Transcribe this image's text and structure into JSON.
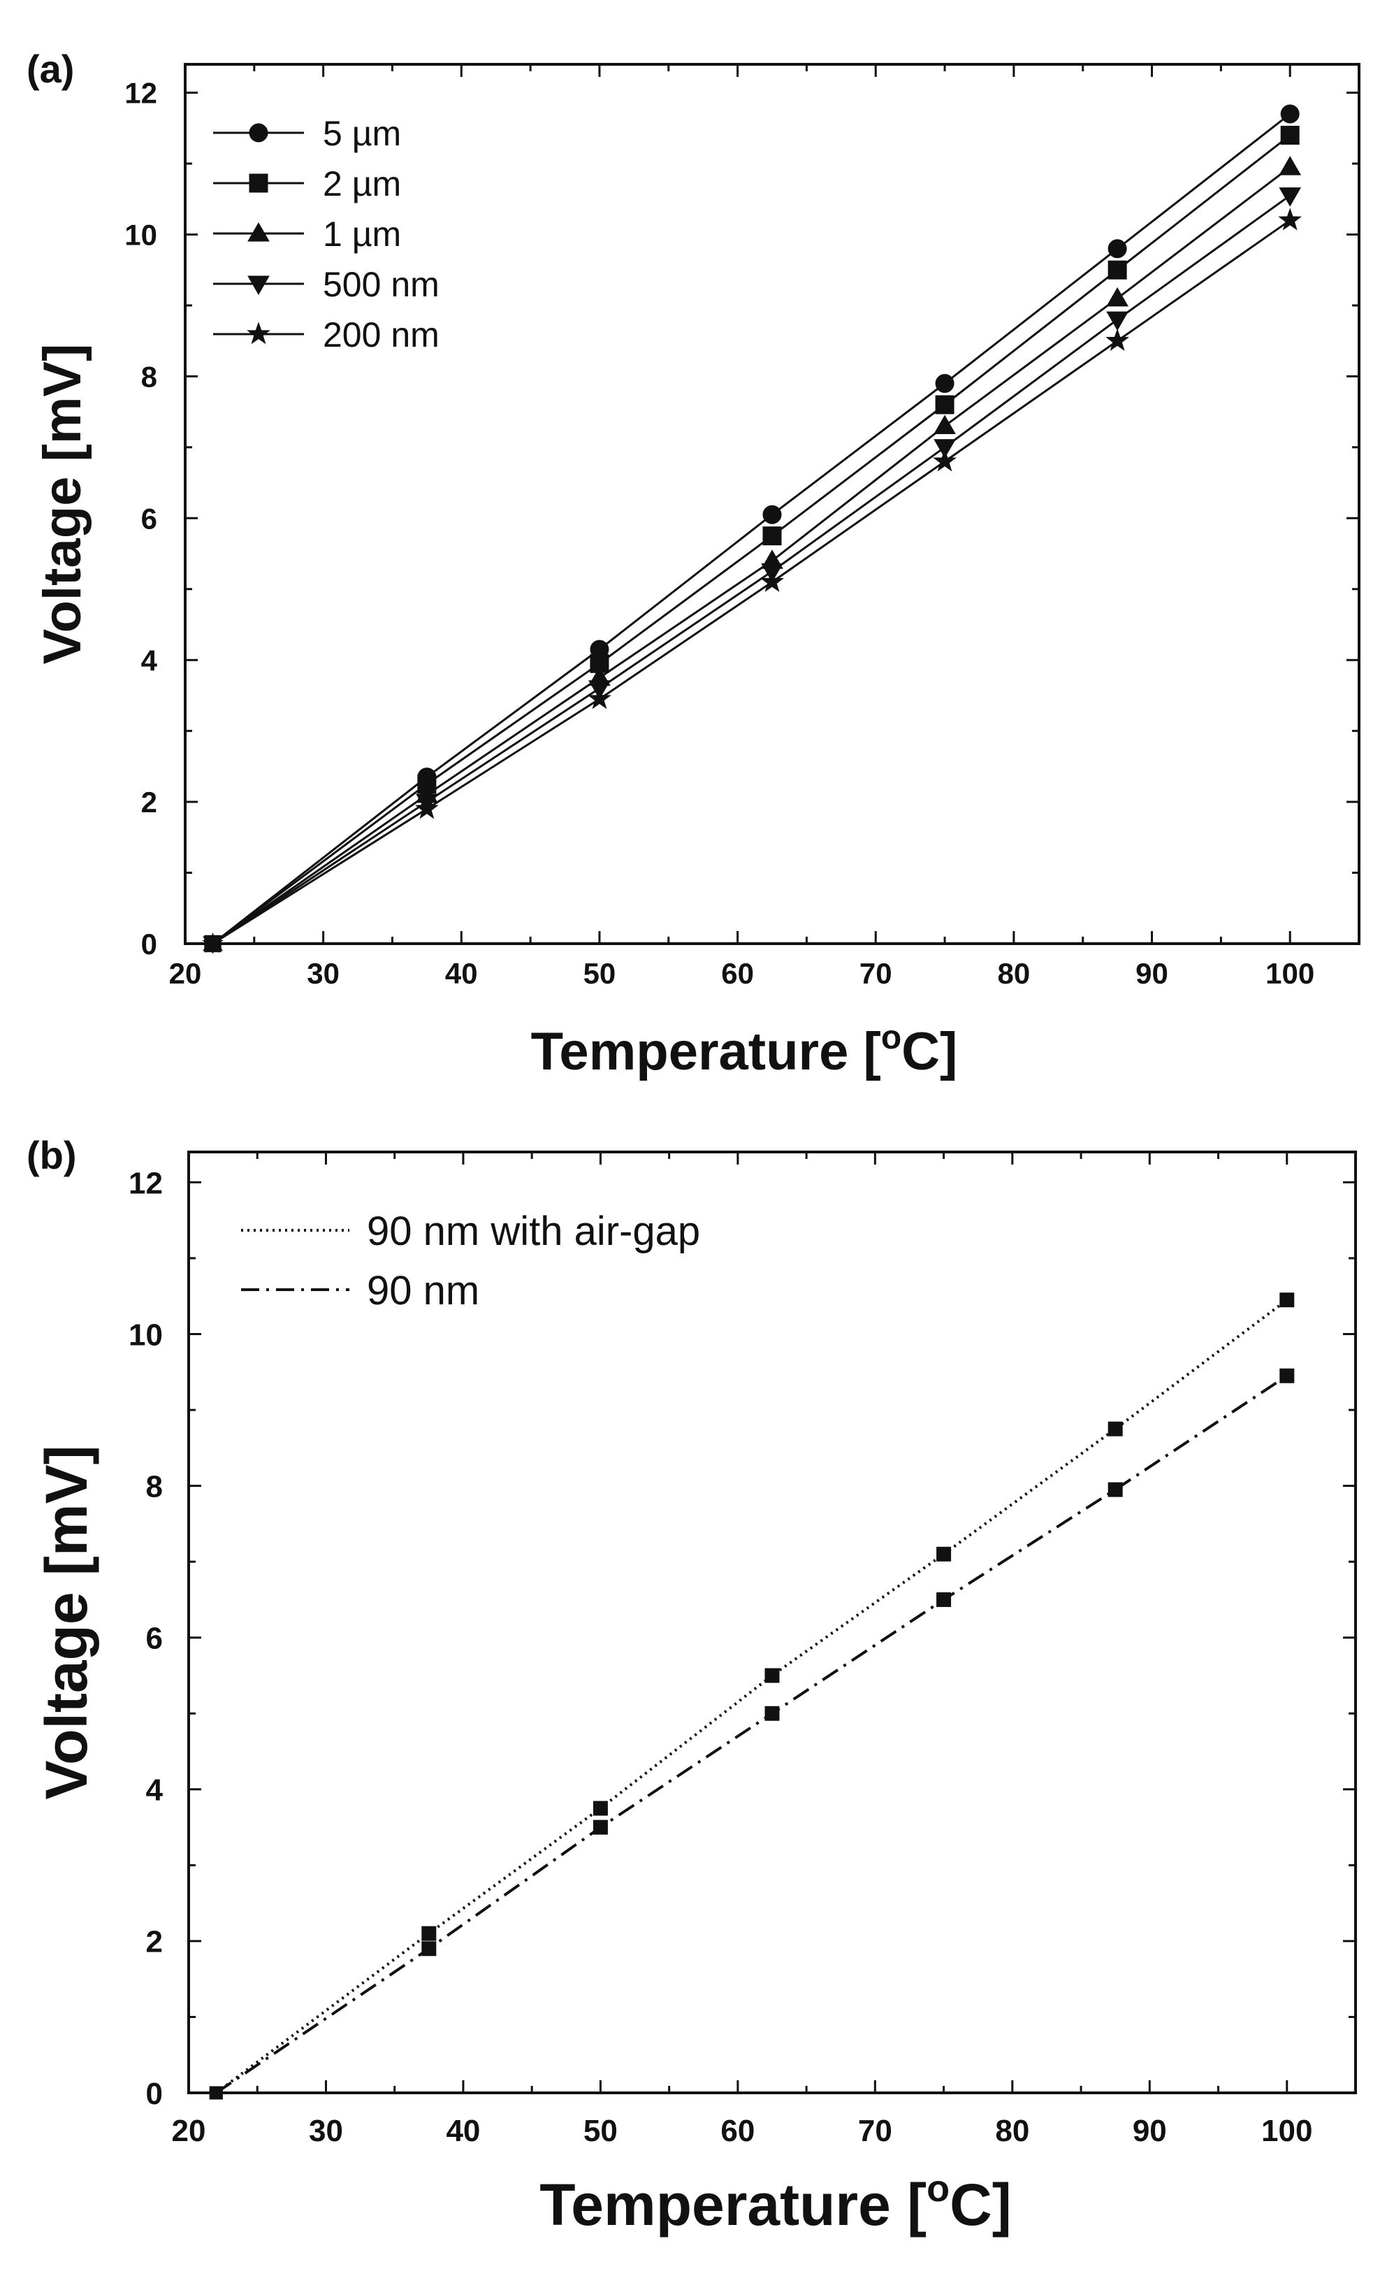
{
  "chart_data": [
    {
      "panel_label": "(a)",
      "type": "line",
      "xlabel": "Temperature [°C]",
      "xlabel_parts": {
        "main": "Temperature [",
        "sup": "o",
        "end": "C]"
      },
      "ylabel": "Voltage [mV]",
      "xlim": [
        20,
        105
      ],
      "ylim": [
        0,
        12.4
      ],
      "xticks": [
        20,
        30,
        40,
        50,
        60,
        70,
        80,
        90,
        100
      ],
      "yticks": [
        0,
        2,
        4,
        6,
        8,
        10,
        12
      ],
      "legend_position": "top-left",
      "x": [
        22,
        37.5,
        50,
        62.5,
        75,
        87.5,
        100
      ],
      "series": [
        {
          "name": "5 µm",
          "marker": "circle",
          "line": "solid",
          "values": [
            0,
            2.35,
            4.15,
            6.05,
            7.9,
            9.8,
            11.7
          ]
        },
        {
          "name": "2 µm",
          "marker": "square",
          "line": "solid",
          "values": [
            0,
            2.25,
            3.95,
            5.75,
            7.6,
            9.5,
            11.4
          ]
        },
        {
          "name": "1 µm",
          "marker": "triangle",
          "line": "solid",
          "values": [
            0,
            2.1,
            3.75,
            5.4,
            7.3,
            9.1,
            10.95
          ]
        },
        {
          "name": "500 nm",
          "marker": "tri-down",
          "line": "solid",
          "values": [
            0,
            2.0,
            3.6,
            5.25,
            7.0,
            8.8,
            10.55
          ]
        },
        {
          "name": "200 nm",
          "marker": "star",
          "line": "solid",
          "values": [
            0,
            1.9,
            3.45,
            5.1,
            6.8,
            8.5,
            10.2
          ]
        }
      ]
    },
    {
      "panel_label": "(b)",
      "type": "line",
      "xlabel": "Temperature [°C]",
      "xlabel_parts": {
        "main": "Temperature [",
        "sup": "o",
        "end": "C]"
      },
      "ylabel": "Voltage [mV]",
      "xlim": [
        20,
        105
      ],
      "ylim": [
        0,
        12.4
      ],
      "xticks": [
        20,
        30,
        40,
        50,
        60,
        70,
        80,
        90,
        100
      ],
      "yticks": [
        0,
        2,
        4,
        6,
        8,
        10,
        12
      ],
      "legend_position": "top-left",
      "x": [
        22,
        37.5,
        50,
        62.5,
        75,
        87.5,
        100
      ],
      "series": [
        {
          "name": "90 nm with air-gap",
          "marker": "square",
          "line": "dotted",
          "values": [
            0,
            2.1,
            3.75,
            5.5,
            7.1,
            8.75,
            10.45
          ]
        },
        {
          "name": "90 nm",
          "marker": "square",
          "line": "dashdot",
          "values": [
            0,
            1.9,
            3.5,
            5.0,
            6.5,
            7.95,
            9.45
          ]
        }
      ]
    }
  ]
}
